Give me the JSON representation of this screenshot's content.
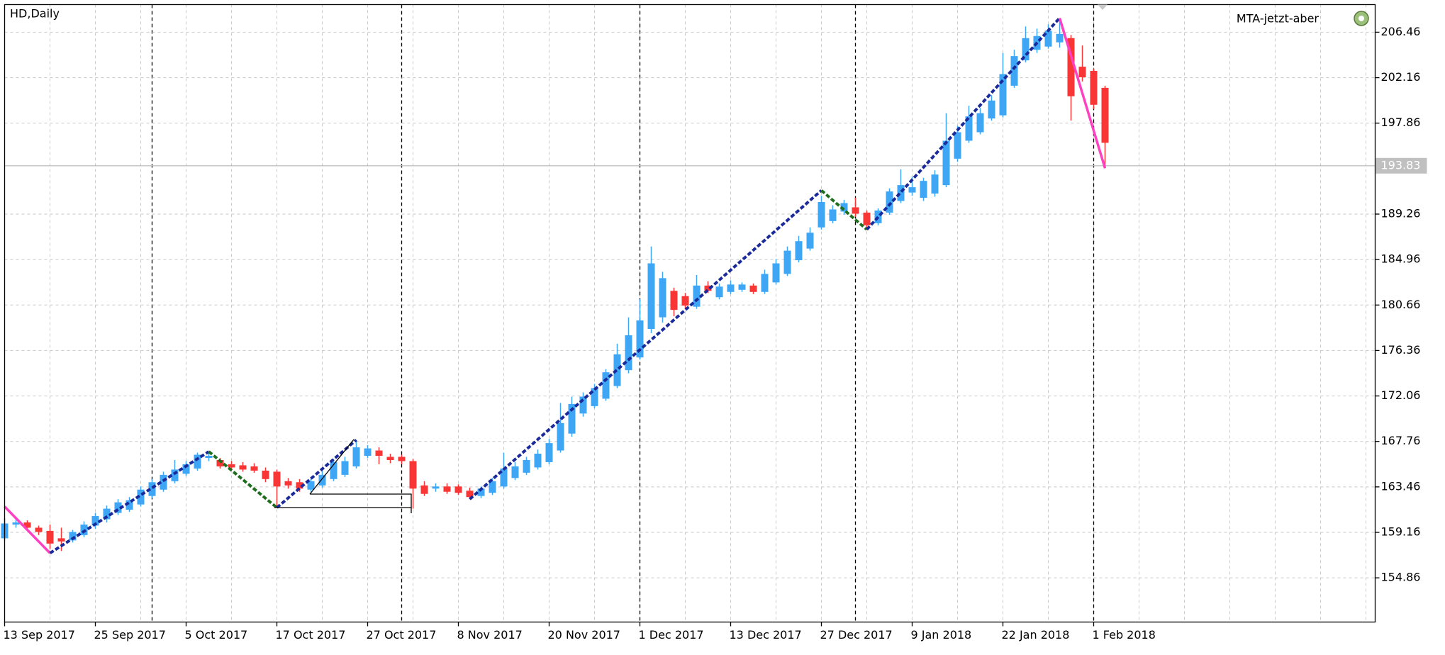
{
  "chart_data": {
    "type": "candlestick",
    "title": "HD,Daily",
    "indicator": "MTA-jetzt-aber",
    "up_color": "#3fa6f5",
    "down_color": "#f83636",
    "grid": true,
    "ylim": [
      150.68,
      209.07
    ],
    "yticks": [
      154.86,
      159.16,
      163.46,
      167.76,
      172.06,
      176.36,
      180.66,
      184.96,
      189.26,
      197.86,
      202.16,
      206.46
    ],
    "current_price": 193.83,
    "categories": [
      "13 Sep 2017",
      null,
      null,
      null,
      null,
      null,
      null,
      null,
      "25 Sep 2017",
      null,
      null,
      null,
      null,
      null,
      null,
      null,
      "5 Oct 2017",
      null,
      null,
      null,
      null,
      null,
      null,
      null,
      "17 Oct 2017",
      null,
      null,
      null,
      null,
      null,
      null,
      null,
      "27 Oct 2017",
      null,
      null,
      null,
      null,
      null,
      null,
      null,
      "8 Nov 2017",
      null,
      null,
      null,
      null,
      null,
      null,
      null,
      "20 Nov 2017",
      null,
      null,
      null,
      null,
      null,
      null,
      null,
      "1 Dec 2017",
      null,
      null,
      null,
      null,
      null,
      null,
      null,
      "13 Dec 2017",
      null,
      null,
      null,
      null,
      null,
      null,
      null,
      "27 Dec 2017",
      null,
      null,
      null,
      null,
      null,
      null,
      null,
      "9 Jan 2018",
      null,
      null,
      null,
      null,
      null,
      null,
      null,
      "22 Jan 2018",
      null,
      null,
      null,
      null,
      null,
      null,
      null,
      "1 Feb 2018",
      null
    ],
    "open": [
      158.6,
      159.9,
      160.1,
      159.6,
      159.3,
      158.6,
      158.4,
      158.9,
      159.8,
      160.4,
      161.0,
      161.3,
      161.8,
      162.6,
      163.2,
      164.0,
      164.7,
      165.2,
      166.2,
      166.0,
      165.6,
      165.5,
      165.4,
      165.0,
      164.9,
      164.0,
      163.9,
      163.2,
      163.6,
      164.2,
      164.6,
      165.4,
      166.4,
      166.9,
      166.3,
      166.3,
      165.9,
      163.6,
      163.3,
      163.5,
      163.5,
      163.1,
      162.6,
      162.9,
      163.5,
      164.3,
      164.8,
      165.3,
      165.8,
      166.9,
      168.5,
      170.4,
      171.1,
      171.8,
      173.0,
      174.5,
      175.7,
      178.4,
      179.5,
      182.0,
      181.5,
      180.5,
      182.5,
      181.4,
      181.9,
      182.1,
      182.5,
      181.9,
      182.8,
      183.6,
      184.9,
      186.0,
      188.0,
      188.6,
      189.5,
      189.9,
      189.4,
      188.4,
      189.4,
      190.5,
      191.3,
      190.8,
      191.2,
      192.0,
      194.5,
      196.2,
      197.0,
      198.3,
      198.6,
      201.4,
      203.8,
      204.8,
      205.1,
      205.5,
      205.9,
      203.2,
      202.8,
      201.2
    ],
    "high": [
      160.5,
      160.4,
      160.3,
      159.8,
      159.9,
      159.6,
      159.4,
      160.2,
      161.0,
      161.7,
      162.3,
      162.5,
      163.5,
      164.2,
      164.9,
      166.0,
      165.9,
      166.7,
      166.8,
      166.2,
      165.9,
      165.8,
      165.7,
      165.3,
      165.1,
      164.3,
      164.2,
      164.2,
      165.0,
      166.1,
      166.3,
      167.9,
      167.4,
      167.2,
      166.6,
      166.5,
      166.1,
      164.0,
      163.8,
      163.8,
      163.7,
      163.4,
      163.5,
      164.3,
      166.7,
      165.8,
      166.3,
      167.0,
      168.0,
      171.4,
      172.0,
      172.4,
      173.2,
      174.6,
      177.0,
      179.5,
      181.2,
      186.2,
      183.8,
      182.3,
      181.8,
      183.5,
      182.9,
      182.7,
      183.0,
      182.8,
      182.7,
      184.0,
      185.0,
      186.2,
      187.2,
      188.0,
      191.0,
      190.1,
      190.6,
      190.8,
      189.6,
      189.8,
      191.7,
      193.5,
      192.8,
      192.7,
      193.4,
      198.8,
      197.6,
      199.5,
      199.3,
      200.5,
      204.5,
      204.8,
      207.0,
      206.8,
      207.2,
      207.8,
      206.2,
      205.2,
      203.0,
      201.4
    ],
    "low": [
      158.4,
      159.6,
      159.4,
      158.9,
      157.6,
      157.4,
      158.2,
      158.7,
      159.5,
      160.1,
      160.8,
      161.1,
      161.6,
      162.4,
      163.0,
      163.8,
      164.5,
      165.0,
      165.9,
      165.2,
      165.1,
      164.9,
      164.8,
      163.9,
      161.5,
      163.3,
      163.0,
      163.0,
      163.4,
      164.0,
      164.4,
      165.2,
      166.2,
      165.6,
      165.7,
      165.6,
      161.4,
      162.6,
      163.0,
      162.8,
      162.7,
      162.3,
      162.4,
      162.7,
      163.3,
      164.1,
      164.6,
      165.1,
      165.6,
      166.7,
      168.2,
      170.1,
      170.9,
      171.6,
      172.8,
      174.2,
      175.5,
      178.0,
      179.0,
      179.6,
      180.3,
      180.3,
      181.8,
      181.2,
      181.7,
      181.9,
      181.7,
      181.7,
      182.6,
      183.4,
      184.7,
      185.8,
      187.8,
      188.4,
      189.2,
      189.0,
      187.8,
      188.2,
      189.2,
      190.3,
      191.0,
      190.5,
      190.9,
      191.8,
      194.2,
      196.0,
      196.8,
      198.1,
      198.4,
      201.2,
      203.6,
      204.5,
      204.9,
      205.0,
      198.1,
      201.8,
      199.2,
      193.6
    ],
    "close": [
      160.0,
      160.1,
      159.6,
      159.2,
      158.1,
      158.3,
      159.2,
      159.9,
      160.7,
      161.4,
      162.0,
      162.2,
      163.2,
      163.9,
      164.6,
      165.1,
      165.6,
      166.5,
      166.4,
      165.4,
      165.3,
      165.1,
      165.0,
      164.2,
      163.5,
      163.6,
      163.3,
      164.0,
      164.6,
      165.8,
      165.9,
      167.2,
      167.1,
      166.4,
      166.0,
      165.9,
      163.3,
      162.8,
      163.5,
      163.0,
      162.9,
      162.5,
      163.3,
      164.0,
      165.2,
      165.4,
      166.0,
      166.6,
      167.6,
      169.5,
      171.3,
      172.0,
      172.8,
      174.3,
      176.0,
      177.8,
      179.2,
      184.6,
      183.2,
      180.2,
      180.6,
      182.5,
      182.0,
      182.4,
      182.6,
      182.6,
      181.9,
      183.6,
      184.6,
      185.8,
      186.7,
      187.5,
      190.4,
      189.7,
      190.3,
      189.3,
      188.2,
      189.6,
      191.4,
      192.0,
      191.8,
      192.4,
      193.0,
      196.2,
      197.0,
      198.5,
      198.8,
      200.0,
      202.5,
      204.2,
      205.9,
      206.1,
      206.6,
      206.3,
      200.4,
      202.2,
      199.6,
      196.0
    ],
    "overlays": [
      {
        "color": "#ff40c0",
        "dashed": false,
        "x": [
          0,
          4
        ],
        "values": [
          161.6,
          157.2
        ]
      },
      {
        "color": "#1a2a9a",
        "dashed": true,
        "x": [
          4,
          18
        ],
        "values": [
          157.2,
          166.8
        ]
      },
      {
        "color": "#1e6e1e",
        "dashed": true,
        "x": [
          18,
          24
        ],
        "values": [
          166.8,
          161.5
        ]
      },
      {
        "color": "#1a2a9a",
        "dashed": true,
        "x": [
          24,
          31
        ],
        "values": [
          161.5,
          167.9
        ]
      },
      {
        "color": "#1a2a9a",
        "dashed": true,
        "x": [
          41,
          72
        ],
        "values": [
          162.3,
          191.5
        ]
      },
      {
        "color": "#1e6e1e",
        "dashed": true,
        "x": [
          72,
          76
        ],
        "values": [
          191.5,
          187.8
        ]
      },
      {
        "color": "#1a2a9a",
        "dashed": true,
        "x": [
          76,
          93
        ],
        "values": [
          187.8,
          207.8
        ]
      },
      {
        "color": "#ff40c0",
        "dashed": false,
        "x": [
          93,
          97
        ],
        "values": [
          207.8,
          193.6
        ]
      }
    ]
  }
}
